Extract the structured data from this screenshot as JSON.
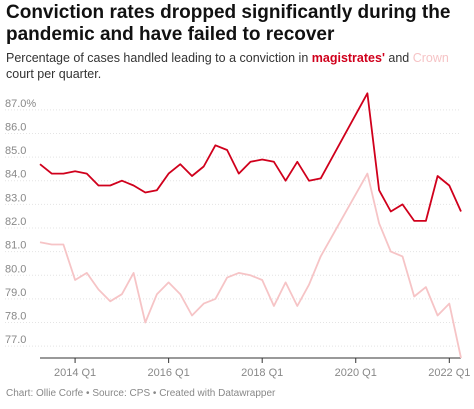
{
  "title": "Conviction rates dropped significantly during the pandemic and have failed to recover",
  "subtitle": {
    "before": "Percentage of cases handled leading to a conviction in ",
    "magistrates": "magistrates'",
    "middle": " and ",
    "crown": "Crown",
    "after": " court per quarter."
  },
  "footer": {
    "chart_by": "Chart: Ollie Corfe",
    "source": "Source: CPS",
    "created": "Created with Datawrapper"
  },
  "chart_data": {
    "type": "line",
    "x_start": "2013 Q2",
    "x_tick_labels": [
      "2014 Q1",
      "2016 Q1",
      "2018 Q1",
      "2020 Q1",
      "2022 Q1"
    ],
    "x_tick_index": [
      3,
      11,
      19,
      27,
      35
    ],
    "yticks": [
      "87.0%",
      "86.0",
      "85.0",
      "84.0",
      "83.0",
      "82.0",
      "81.0",
      "80.0",
      "79.0",
      "78.0",
      "77.0"
    ],
    "ylim": [
      76.5,
      87.5
    ],
    "grid": true,
    "colors": {
      "magistrates": "#d0001c",
      "crown": "#f6c4c6"
    },
    "series": [
      {
        "name": "magistrates'",
        "values": [
          84.7,
          84.3,
          84.3,
          84.4,
          84.3,
          83.8,
          83.8,
          84.0,
          83.8,
          83.5,
          83.6,
          84.3,
          84.7,
          84.2,
          84.6,
          85.5,
          85.3,
          84.3,
          84.8,
          84.9,
          84.8,
          84.0,
          84.8,
          84.0,
          84.1,
          null,
          null,
          null,
          87.7,
          83.6,
          82.7,
          83.0,
          82.3,
          82.3,
          84.2,
          83.8,
          82.7
        ]
      },
      {
        "name": "Crown",
        "values": [
          81.4,
          81.3,
          81.3,
          79.8,
          80.1,
          79.4,
          78.9,
          79.2,
          80.1,
          78.0,
          79.2,
          79.7,
          79.2,
          78.3,
          78.8,
          79.0,
          79.9,
          80.1,
          80.0,
          79.8,
          78.7,
          79.7,
          78.7,
          79.6,
          80.8,
          null,
          null,
          null,
          84.3,
          82.2,
          81.0,
          80.8,
          79.1,
          79.5,
          78.3,
          78.8,
          76.5
        ]
      }
    ]
  }
}
